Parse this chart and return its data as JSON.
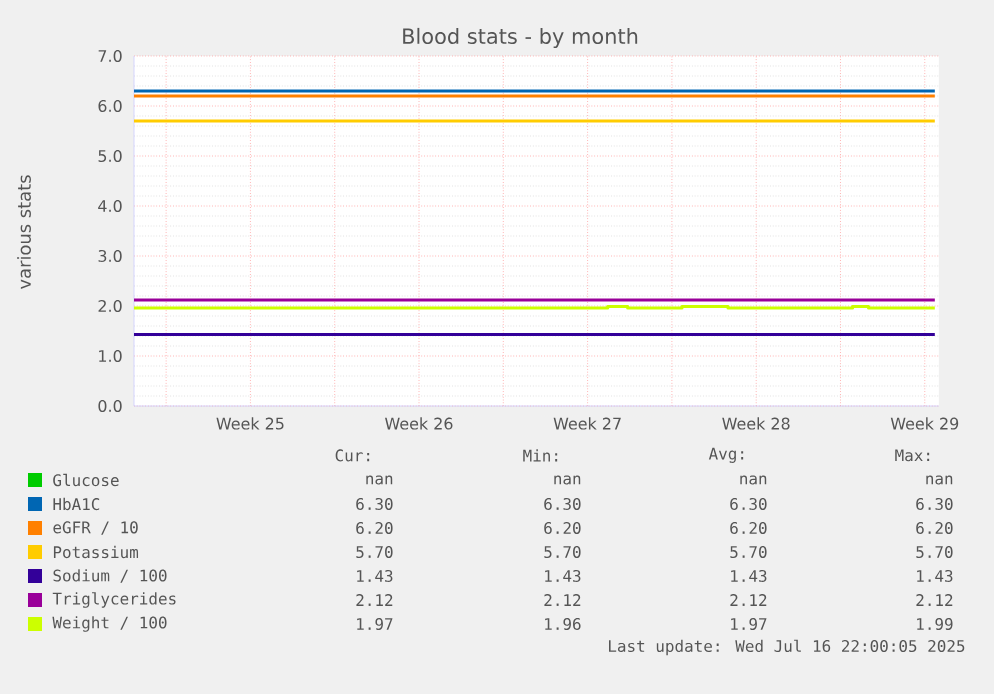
{
  "chart_data": {
    "type": "line",
    "title": "Blood stats - by month",
    "ylabel": "various stats",
    "xlim": [
      "2025-06-13T16:00",
      "2025-07-17T02:00"
    ],
    "ylim": [
      0,
      7
    ],
    "xticks": [
      {
        "value": "2025-06-15T00:00",
        "label": null
      },
      {
        "value": "2025-06-18T12:00",
        "label": "Week 25"
      },
      {
        "value": "2025-06-22T00:00",
        "label": null
      },
      {
        "value": "2025-06-25T12:00",
        "label": "Week 26"
      },
      {
        "value": "2025-06-29T00:00",
        "label": null
      },
      {
        "value": "2025-07-02T12:00",
        "label": "Week 27"
      },
      {
        "value": "2025-07-06T00:00",
        "label": null
      },
      {
        "value": "2025-07-09T12:00",
        "label": "Week 28"
      },
      {
        "value": "2025-07-13T00:00",
        "label": null
      },
      {
        "value": "2025-07-16T12:00",
        "label": "Week 29"
      }
    ],
    "yticks": [
      {
        "value": 0,
        "label": "0.0"
      },
      {
        "value": 1,
        "label": "1.0"
      },
      {
        "value": 2,
        "label": "2.0"
      },
      {
        "value": 3,
        "label": "3.0"
      },
      {
        "value": 4,
        "label": "4.0"
      },
      {
        "value": 5,
        "label": "5.0"
      },
      {
        "value": 6,
        "label": "6.0"
      },
      {
        "value": 7,
        "label": "7.0"
      }
    ],
    "grid": true,
    "legend": "bottom",
    "series": [
      {
        "name": "Glucose",
        "color": "#00cc00"
      },
      {
        "name": "HbA1C",
        "color": "#0066b3",
        "x": [
          "2025-06-13T16:00",
          "2025-07-16T22:00"
        ],
        "values": [
          6.3,
          6.3
        ]
      },
      {
        "name": "eGFR / 10",
        "color": "#ff8000",
        "x": [
          "2025-06-13T16:00",
          "2025-07-16T22:00"
        ],
        "values": [
          6.2,
          6.2
        ]
      },
      {
        "name": "Potassium",
        "color": "#ffcc00",
        "x": [
          "2025-06-13T16:00",
          "2025-07-16T22:00"
        ],
        "values": [
          5.7,
          5.7
        ]
      },
      {
        "name": "Sodium / 100",
        "color": "#330099",
        "x": [
          "2025-06-13T16:00",
          "2025-07-16T22:00"
        ],
        "values": [
          1.43,
          1.43
        ]
      },
      {
        "name": "Triglycerides",
        "color": "#990099",
        "x": [
          "2025-06-13T16:00",
          "2025-07-16T22:00"
        ],
        "values": [
          2.12,
          2.12
        ]
      },
      {
        "name": "Weight / 100",
        "color": "#ccff00",
        "type": "step",
        "x": [
          "2025-06-13T16:00",
          "2025-07-03T08:00",
          "2025-07-04T04:00",
          "2025-07-06T10:00",
          "2025-07-08T08:00",
          "2025-07-13T12:00",
          "2025-07-14T04:00",
          "2025-07-16T22:00"
        ],
        "values": [
          1.96,
          1.99,
          1.96,
          1.99,
          1.96,
          1.99,
          1.96,
          1.96
        ]
      }
    ],
    "annotations": [
      "Cur:",
      "Min:",
      "Avg:",
      "Max:",
      "nan",
      "nan",
      "nan",
      "nan",
      "6.30",
      "6.30",
      "6.30",
      "6.30",
      "6.20",
      "6.20",
      "6.20",
      "6.20",
      "5.70",
      "5.70",
      "5.70",
      "5.70",
      "1.43",
      "1.43",
      "1.43",
      "1.43",
      "2.12",
      "2.12",
      "2.12",
      "2.12",
      "1.97",
      "1.96",
      "1.97",
      "1.99",
      "Last update: Wed Jul 16 22:00:05 2025"
    ]
  }
}
